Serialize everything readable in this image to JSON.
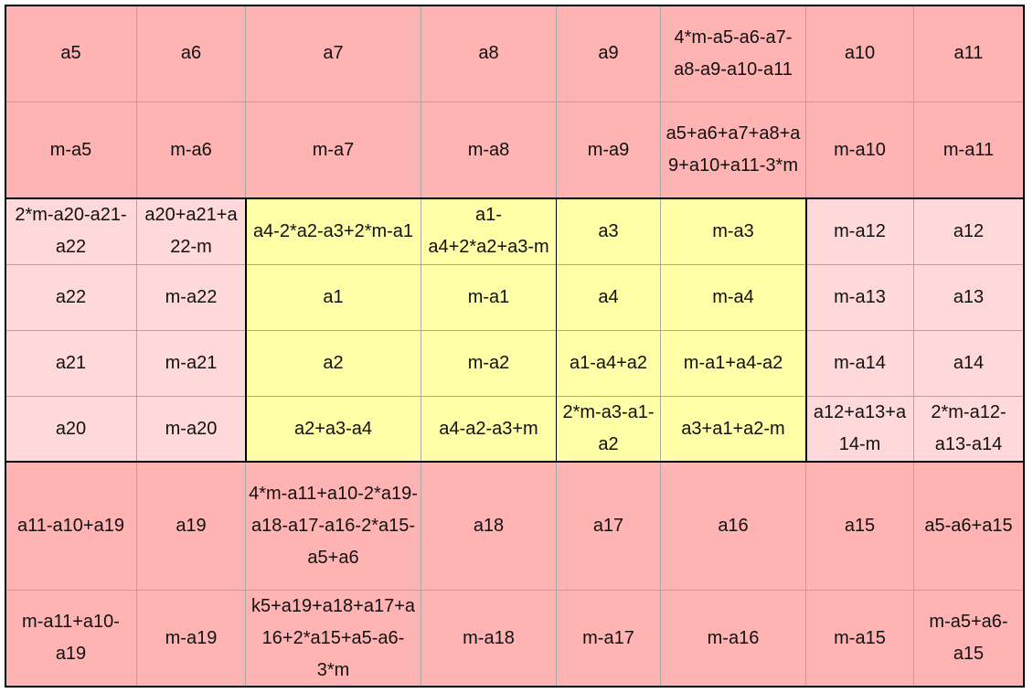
{
  "table": {
    "rows": [
      [
        "a5",
        "a6",
        "a7",
        "a8",
        "a9",
        "4*m-a5-a6-a7-a8-a9-a10-a11",
        "a10",
        "a11"
      ],
      [
        "m-a5",
        "m-a6",
        "m-a7",
        "m-a8",
        "m-a9",
        "a5+a6+a7+a8+a9+a10+a11-3*m",
        "m-a10",
        "m-a11"
      ],
      [
        "2*m-a20-a21-a22",
        "a20+a21+a22-m",
        "a4-2*a2-a3+2*m-a1",
        "a1-a4+2*a2+a3-m",
        "a3",
        "m-a3",
        "m-a12",
        "a12"
      ],
      [
        "a22",
        "m-a22",
        "a1",
        "m-a1",
        "a4",
        "m-a4",
        "m-a13",
        "a13"
      ],
      [
        "a21",
        "m-a21",
        "a2",
        "m-a2",
        "a1-a4+a2",
        "m-a1+a4-a2",
        "m-a14",
        "a14"
      ],
      [
        "a20",
        "m-a20",
        "a2+a3-a4",
        "a4-a2-a3+m",
        "2*m-a3-a1-a2",
        "a3+a1+a2-m",
        "a12+a13+a14-m",
        "2*m-a12-a13-a14"
      ],
      [
        "a11-a10+a19",
        "a19",
        "4*m-a11+a10-2*a19-a18-a17-a16-2*a15-a5+a6",
        "a18",
        "a17",
        "a16",
        "a15",
        "a5-a6+a15"
      ],
      [
        "m-a11+a10-a19",
        "m-a19",
        "k5+a19+a18+a17+a16+2*a15+a5-a6-3*m",
        "m-a18",
        "m-a17",
        "m-a16",
        "m-a15",
        "m-a5+a6-a15"
      ]
    ]
  }
}
